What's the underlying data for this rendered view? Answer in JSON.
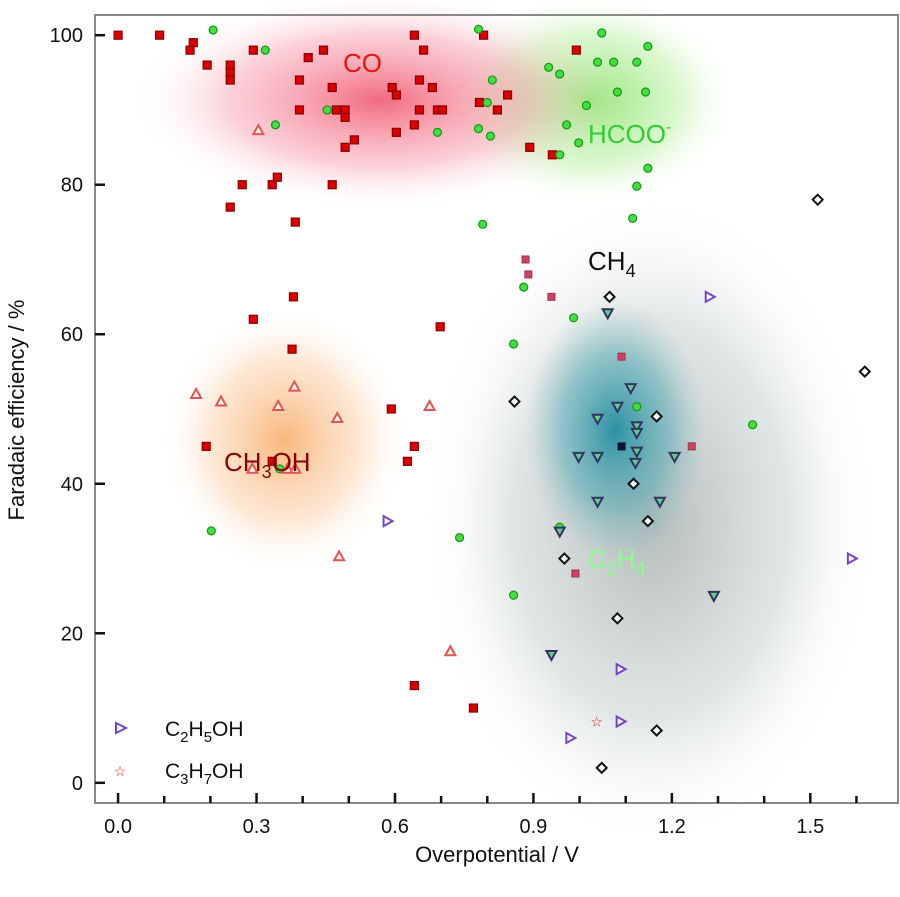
{
  "chart_data": {
    "type": "scatter",
    "xlabel": "Overpotential / V",
    "ylabel": "Faradaic efficiency / %",
    "xlim": [
      -0.05,
      1.69
    ],
    "ylim": [
      -2.7,
      102.7
    ],
    "x_ticks": [
      "0.0",
      "0.3",
      "0.6",
      "0.9",
      "1.2",
      "1.5"
    ],
    "x_tick_values": [
      0.0,
      0.3,
      0.6,
      0.9,
      1.2,
      1.5
    ],
    "x_minor_step": 0.1,
    "y_ticks": [
      "0",
      "20",
      "40",
      "60",
      "80",
      "100"
    ],
    "y_tick_values": [
      0,
      20,
      40,
      60,
      80,
      100
    ],
    "grid": false,
    "legend_placement": "bottom-left",
    "annotations": [
      {
        "id": "co",
        "main": "CO",
        "sub": "",
        "tail": "",
        "sup": "",
        "color": "#ee1111"
      },
      {
        "id": "hcoo",
        "main": "HCOO",
        "sub": "",
        "tail": "",
        "sup": "-",
        "color": "#33cc33"
      },
      {
        "id": "ch4",
        "main": "CH",
        "sub": "4",
        "tail": "",
        "sup": "",
        "color": "#111111"
      },
      {
        "id": "c2h4",
        "main": "C",
        "sub": "2",
        "tail": "H",
        "sub2": "4",
        "sup": "",
        "color": "#88ff88"
      },
      {
        "id": "ch3oh",
        "main": "CH",
        "sub": "3",
        "tail": "OH",
        "sup": "",
        "color": "#880000"
      }
    ],
    "legend": [
      {
        "main": "C",
        "sub": "2",
        "mid": "H",
        "sub2": "5",
        "tail": "OH",
        "marker": "right-triangle"
      },
      {
        "main": "C",
        "sub": "3",
        "mid": "H",
        "sub2": "7",
        "tail": "OH",
        "marker": "star"
      }
    ],
    "series": [
      {
        "id": "co",
        "marker": "square",
        "color": "#dd0000",
        "points": [
          [
            0,
            100
          ],
          [
            0.09,
            100
          ],
          [
            0.163,
            99
          ],
          [
            0.156,
            98
          ],
          [
            0.193,
            96
          ],
          [
            0.243,
            96
          ],
          [
            0.243,
            95
          ],
          [
            0.243,
            94
          ],
          [
            0.293,
            98
          ],
          [
            0.412,
            97
          ],
          [
            0.445,
            98
          ],
          [
            0.393,
            94
          ],
          [
            0.464,
            93
          ],
          [
            0.393,
            90
          ],
          [
            0.473,
            90
          ],
          [
            0.492,
            90
          ],
          [
            0.492,
            89
          ],
          [
            0.512,
            86
          ],
          [
            0.492,
            85
          ],
          [
            0.594,
            93
          ],
          [
            0.603,
            92
          ],
          [
            0.642,
            100
          ],
          [
            0.662,
            98
          ],
          [
            0.653,
            94
          ],
          [
            0.681,
            93
          ],
          [
            0.653,
            90
          ],
          [
            0.692,
            90
          ],
          [
            0.703,
            90
          ],
          [
            0.642,
            88
          ],
          [
            0.603,
            87
          ],
          [
            0.783,
            91
          ],
          [
            0.822,
            90
          ],
          [
            0.844,
            92
          ],
          [
            0.792,
            100
          ],
          [
            0.892,
            85
          ],
          [
            0.269,
            80
          ],
          [
            0.334,
            80
          ],
          [
            0.345,
            81
          ],
          [
            0.464,
            80
          ],
          [
            0.243,
            77
          ],
          [
            0.384,
            75
          ],
          [
            0.993,
            98
          ],
          [
            0.941,
            84
          ],
          [
            0.293,
            62
          ],
          [
            0.38,
            65
          ],
          [
            0.377,
            58
          ],
          [
            0.592,
            50
          ],
          [
            0.191,
            45
          ],
          [
            0.334,
            43
          ],
          [
            0.642,
            45
          ],
          [
            0.627,
            43
          ],
          [
            0.698,
            61
          ],
          [
            0.642,
            13
          ],
          [
            0.77,
            10
          ]
        ]
      },
      {
        "id": "co-hatched",
        "marker": "square-light",
        "color": "#d04060",
        "points": [
          [
            0.883,
            70
          ],
          [
            0.889,
            68
          ],
          [
            0.939,
            65
          ],
          [
            1.091,
            57
          ],
          [
            1.243,
            45
          ],
          [
            0.991,
            28
          ]
        ]
      },
      {
        "id": "dark-square",
        "marker": "square-dark",
        "color": "#111133",
        "points": [
          [
            1.091,
            45
          ]
        ]
      },
      {
        "id": "hcoo",
        "marker": "circle",
        "color": "#44dd44",
        "points": [
          [
            0.206,
            100.7
          ],
          [
            0.319,
            98
          ],
          [
            0.341,
            88
          ],
          [
            0.453,
            90
          ],
          [
            0.692,
            87
          ],
          [
            0.811,
            94
          ],
          [
            0.8,
            91
          ],
          [
            0.781,
            87.5
          ],
          [
            0.807,
            86.5
          ],
          [
            0.781,
            100.8
          ],
          [
            1.048,
            100.3
          ],
          [
            0.933,
            95.7
          ],
          [
            0.957,
            94.8
          ],
          [
            1.039,
            96.4
          ],
          [
            1.074,
            96.4
          ],
          [
            1.124,
            96.4
          ],
          [
            1.148,
            98.5
          ],
          [
            1.082,
            92.4
          ],
          [
            1.143,
            92.4
          ],
          [
            1.015,
            90.6
          ],
          [
            0.972,
            88
          ],
          [
            0.998,
            85.6
          ],
          [
            0.957,
            84
          ],
          [
            1.148,
            82.2
          ],
          [
            1.124,
            79.8
          ],
          [
            1.115,
            75.5
          ],
          [
            0.79,
            74.7
          ],
          [
            0.987,
            62.2
          ],
          [
            0.857,
            58.7
          ],
          [
            1.124,
            50.3
          ],
          [
            1.375,
            47.9
          ],
          [
            0.957,
            34.2
          ],
          [
            0.74,
            32.8
          ],
          [
            0.857,
            25.1
          ],
          [
            0.879,
            66.3
          ],
          [
            0.202,
            33.7
          ],
          [
            0.35,
            42
          ]
        ]
      },
      {
        "id": "ch3oh",
        "marker": "up-triangle",
        "color": "#e05555",
        "points": [
          [
            0.169,
            52
          ],
          [
            0.223,
            51
          ],
          [
            0.382,
            53
          ],
          [
            0.347,
            50.4
          ],
          [
            0.475,
            48.8
          ],
          [
            0.675,
            50.4
          ],
          [
            0.291,
            42
          ],
          [
            0.367,
            42
          ],
          [
            0.384,
            42
          ],
          [
            0.304,
            87.3
          ],
          [
            0.479,
            30.3
          ],
          [
            0.72,
            17.6
          ]
        ]
      },
      {
        "id": "ch4",
        "marker": "diamond",
        "color": "#111111",
        "points": [
          [
            1.065,
            65
          ],
          [
            1.516,
            78
          ],
          [
            0.859,
            51
          ],
          [
            1.167,
            49
          ],
          [
            1.618,
            55
          ],
          [
            1.117,
            40
          ],
          [
            1.148,
            35
          ],
          [
            0.967,
            30
          ],
          [
            1.082,
            22
          ],
          [
            1.167,
            7
          ],
          [
            1.048,
            2
          ]
        ]
      },
      {
        "id": "c2h4",
        "marker": "down-triangle",
        "color": "#333366",
        "points": [
          [
            1.061,
            62.8
          ],
          [
            1.111,
            52.8
          ],
          [
            1.082,
            50.3
          ],
          [
            1.039,
            48.7
          ],
          [
            1.124,
            47.7
          ],
          [
            1.124,
            46.8
          ],
          [
            1.124,
            44.3
          ],
          [
            0.998,
            43.6
          ],
          [
            1.039,
            43.6
          ],
          [
            1.121,
            42.8
          ],
          [
            1.206,
            43.6
          ],
          [
            1.039,
            37.6
          ],
          [
            1.174,
            37.6
          ],
          [
            0.957,
            33.6
          ],
          [
            1.291,
            25
          ],
          [
            0.939,
            17.1
          ]
        ]
      },
      {
        "id": "c2h5oh",
        "marker": "right-triangle",
        "color": "#7744cc",
        "points": [
          [
            0.584,
            35
          ],
          [
            1.282,
            65
          ],
          [
            1.59,
            30
          ],
          [
            1.089,
            15.2
          ],
          [
            0.98,
            6
          ],
          [
            1.089,
            8.2
          ]
        ]
      },
      {
        "id": "c3h7oh",
        "marker": "star",
        "color": "#ee2222",
        "points": [
          [
            1.037,
            8.2
          ]
        ]
      }
    ]
  }
}
